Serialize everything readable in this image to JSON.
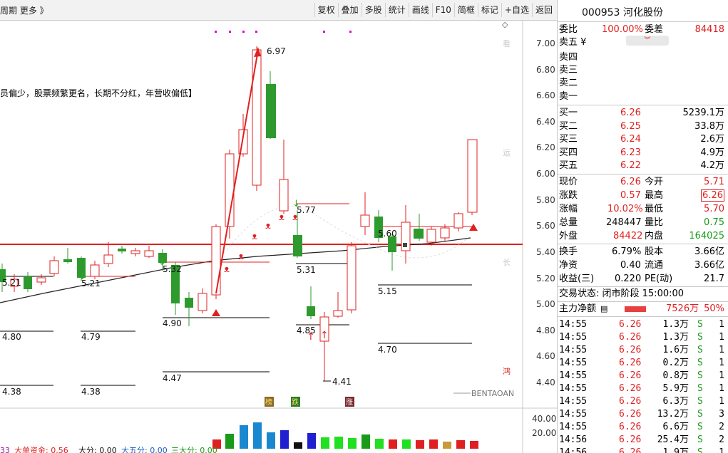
{
  "toolbar": {
    "left_text": "周期  更多 》",
    "buttons": [
      "复权",
      "叠加",
      "多股",
      "统计",
      "画线",
      "F10",
      "简框",
      "标记",
      "+自选",
      "返回"
    ]
  },
  "chart": {
    "price_axis": [
      "7.00",
      "6.80",
      "6.60",
      "6.40",
      "6.20",
      "6.00",
      "5.80",
      "5.60",
      "5.40",
      "5.20",
      "5.00",
      "4.80",
      "4.60",
      "4.40"
    ],
    "vol_axis": [
      "40.00",
      "20.00"
    ],
    "banner": "员偏少，股票频繁更名，长期不分红，年营收偏低】",
    "watermark": "BENTAOAN",
    "side_chars": [
      "看",
      "运",
      "长",
      "鸿"
    ],
    "badges": [
      "榜",
      "跌",
      "涨"
    ],
    "labels": [
      "6.97",
      "5.21",
      "5.21",
      "5.32",
      "4.80",
      "4.79",
      "4.90",
      "4.47",
      "4.38",
      "4.38",
      "5.77",
      "5.31",
      "4.85",
      "4.41",
      "5.60",
      "5.15",
      "4.70"
    ],
    "bottom_text": [
      "33",
      "大单资金: 0.56",
      "大分: 0.00",
      "大五分: 0.00",
      "三大分: 0.00"
    ]
  },
  "panel": {
    "code": "000953",
    "name": "河化股份",
    "webi_label": "委比",
    "webi_value": "100.00%",
    "wecha_label": "委差",
    "wecha_value": "84418",
    "sells": [
      {
        "label": "卖五 ¥",
        "price": "",
        "vol": ""
      },
      {
        "label": "卖四",
        "price": "",
        "vol": ""
      },
      {
        "label": "卖三",
        "price": "",
        "vol": ""
      },
      {
        "label": "卖二",
        "price": "",
        "vol": ""
      },
      {
        "label": "卖一",
        "price": "",
        "vol": ""
      }
    ],
    "buys": [
      {
        "label": "买一",
        "price": "6.26",
        "vol": "5239.1万"
      },
      {
        "label": "买二",
        "price": "6.25",
        "vol": "33.8万"
      },
      {
        "label": "买三",
        "price": "6.24",
        "vol": "2.6万"
      },
      {
        "label": "买四",
        "price": "6.23",
        "vol": "4.9万"
      },
      {
        "label": "买五",
        "price": "6.22",
        "vol": "4.2万"
      }
    ],
    "stats": [
      {
        "l1": "现价",
        "v1": "6.26",
        "c1": "red",
        "l2": "今开",
        "v2": "5.71",
        "c2": "red"
      },
      {
        "l1": "涨跌",
        "v1": "0.57",
        "c1": "red",
        "l2": "最高",
        "v2": "6.26",
        "c2": "red"
      },
      {
        "l1": "涨幅",
        "v1": "10.02%",
        "c1": "red",
        "l2": "最低",
        "v2": "5.70",
        "c2": "red"
      },
      {
        "l1": "总量",
        "v1": "248447",
        "c1": "blk",
        "l2": "量比",
        "v2": "0.75",
        "c2": "grn"
      },
      {
        "l1": "外盘",
        "v1": "84422",
        "c1": "red",
        "l2": "内盘",
        "v2": "164025",
        "c2": "grn"
      }
    ],
    "stats2": [
      {
        "l1": "换手",
        "v1": "6.79%",
        "l2": "股本",
        "v2": "3.66亿"
      },
      {
        "l1": "净资",
        "v1": "0.40",
        "l2": "流通",
        "v2": "3.66亿"
      },
      {
        "l1": "收益(三)",
        "v1": "0.220",
        "l2": "PE(动)",
        "v2": "21.7"
      }
    ],
    "trade_status": "交易状态: 闭市阶段 15:00:00",
    "mainforce_label": "主力净额",
    "mainforce_value": "7526万",
    "mainforce_pct": "50%",
    "ticks": [
      {
        "t": "14:55",
        "p": "6.26",
        "v": "1.3万",
        "s": "S",
        "n": "1"
      },
      {
        "t": "14:55",
        "p": "6.26",
        "v": "1.3万",
        "s": "S",
        "n": "1"
      },
      {
        "t": "14:55",
        "p": "6.26",
        "v": "1.6万",
        "s": "S",
        "n": "1"
      },
      {
        "t": "14:55",
        "p": "6.26",
        "v": "0.2万",
        "s": "S",
        "n": "1"
      },
      {
        "t": "14:55",
        "p": "6.26",
        "v": "0.8万",
        "s": "S",
        "n": "1"
      },
      {
        "t": "14:55",
        "p": "6.26",
        "v": "5.9万",
        "s": "S",
        "n": "1"
      },
      {
        "t": "14:55",
        "p": "6.26",
        "v": "6.3万",
        "s": "S",
        "n": "1"
      },
      {
        "t": "14:55",
        "p": "6.26",
        "v": "13.2万",
        "s": "S",
        "n": "3"
      },
      {
        "t": "14:55",
        "p": "6.26",
        "v": "6.6万",
        "s": "S",
        "n": "2"
      },
      {
        "t": "14:56",
        "p": "6.26",
        "v": "25.4万",
        "s": "S",
        "n": "2"
      },
      {
        "t": "14:56",
        "p": "6.26",
        "v": "1.9万",
        "s": "S",
        "n": "1"
      }
    ]
  }
}
